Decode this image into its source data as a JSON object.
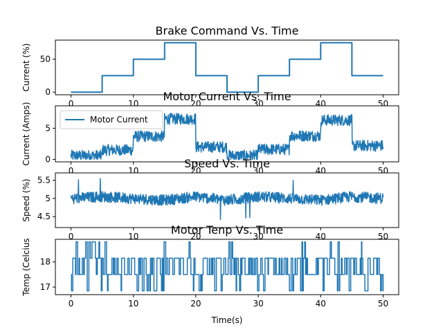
{
  "figure": {
    "xlabel": "Time(s)"
  },
  "chart_data": [
    {
      "type": "line",
      "title": "Brake Command Vs. Time",
      "ylabel": "Current (%)",
      "xlim": [
        -2.5,
        52.5
      ],
      "ylim": [
        -4,
        79
      ],
      "xticks": [
        0,
        10,
        20,
        30,
        40,
        50
      ],
      "yticks": [
        0,
        50
      ],
      "step": true,
      "series": [
        {
          "color": "#1f77b4",
          "x": [
            0,
            5,
            5,
            10,
            10,
            15,
            15,
            20,
            20,
            25,
            25,
            30,
            30,
            35,
            35,
            40,
            40,
            45,
            45,
            50
          ],
          "y": [
            0,
            0,
            25,
            25,
            50,
            50,
            75,
            75,
            25,
            25,
            0,
            0,
            25,
            25,
            50,
            50,
            75,
            75,
            25,
            25
          ]
        }
      ]
    },
    {
      "type": "line",
      "title": "Motor Current Vs. Time",
      "ylabel": "Current (Amps)",
      "xlim": [
        -2.5,
        52.5
      ],
      "ylim": [
        -0.4,
        8.6
      ],
      "xticks": [
        0,
        10,
        20,
        30,
        40,
        50
      ],
      "yticks": [
        0,
        5
      ],
      "legend": {
        "position": "upper-left",
        "entries": [
          {
            "label": "Motor Current",
            "color": "#1f77b4"
          }
        ]
      },
      "series": [
        {
          "name": "Motor Current",
          "color": "#1f77b4",
          "x": [
            0,
            5,
            10,
            15,
            20,
            25,
            30,
            35,
            40,
            45,
            50
          ],
          "y": [
            0.6,
            1.5,
            3.7,
            6.5,
            2.0,
            0.6,
            1.6,
            3.8,
            6.3,
            2.2,
            2.2
          ],
          "noise_amplitude": 0.9
        }
      ]
    },
    {
      "type": "line",
      "title": "Speed Vs. Time",
      "ylabel": "Speed (%)",
      "xlim": [
        -2.5,
        52.5
      ],
      "ylim": [
        4.2,
        5.7
      ],
      "xticks": [
        0,
        10,
        20,
        30,
        40,
        50
      ],
      "yticks": [
        4.5,
        5.0,
        5.5
      ],
      "series": [
        {
          "color": "#1f77b4",
          "x": [
            0,
            5,
            10,
            15,
            20,
            25,
            30,
            35,
            40,
            45,
            50
          ],
          "y": [
            5.0,
            5.05,
            5.0,
            4.95,
            5.05,
            4.95,
            5.05,
            5.0,
            4.95,
            5.05,
            5.0
          ],
          "noise_amplitude": 0.15
        }
      ]
    },
    {
      "type": "line",
      "title": "Motor Tenp Vs. Time",
      "ylabel": "Temp (Celcius",
      "xlim": [
        -2.5,
        52.5
      ],
      "ylim": [
        16.7,
        18.9
      ],
      "xticks": [
        0,
        10,
        20,
        30,
        40,
        50
      ],
      "yticks": [
        17,
        18
      ],
      "levels": [
        16.85,
        17.5,
        18.15,
        18.8
      ],
      "series": [
        {
          "color": "#1f77b4",
          "x": [
            0,
            50
          ],
          "y": [
            17.5,
            18.15
          ]
        }
      ]
    }
  ]
}
